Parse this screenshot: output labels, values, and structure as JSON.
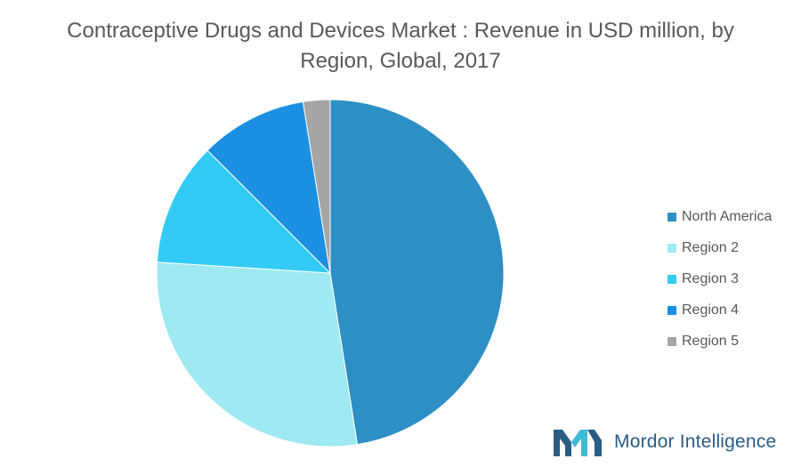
{
  "chart_data": {
    "type": "pie",
    "title": "Contraceptive Drugs and Devices Market : Revenue in USD million, by Region, Global, 2017",
    "categories": [
      "North America",
      "Region 2",
      "Region 3",
      "Region 4",
      "Region 5"
    ],
    "values": [
      47.5,
      28.5,
      11.5,
      10.0,
      2.5
    ],
    "colors": [
      "#2e8fc4",
      "#9ee9f2",
      "#33cbf5",
      "#1b90e2",
      "#a5a5a5"
    ],
    "legend_position": "right"
  },
  "logo": {
    "text": "Mordor Intelligence",
    "icon": "mordor-intelligence-logo-icon"
  }
}
